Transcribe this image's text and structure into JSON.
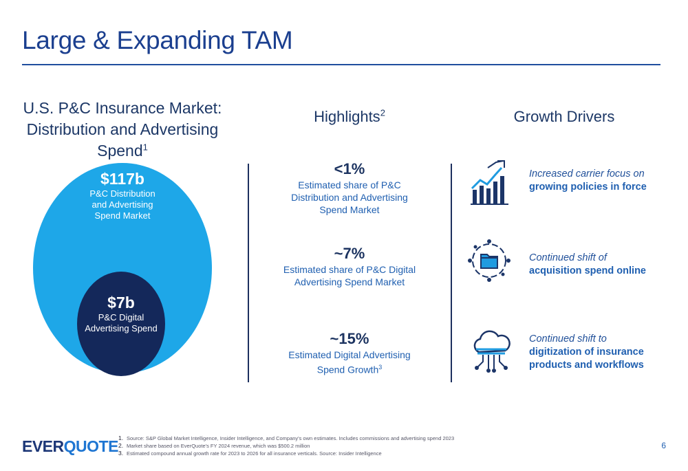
{
  "slide": {
    "title": "Large & Expanding TAM",
    "page_number": "6"
  },
  "left_column": {
    "heading_line1": "U.S. P&C Insurance Market:",
    "heading_line2": "Distribution and Advertising",
    "heading_line3": "Spend",
    "heading_sup": "1",
    "outer": {
      "amount": "$117b",
      "label1": "P&C Distribution",
      "label2": "and Advertising",
      "label3": "Spend Market"
    },
    "inner": {
      "amount": "$7b",
      "label1": "P&C Digital",
      "label2": "Advertising Spend"
    }
  },
  "highlights": {
    "heading": "Highlights",
    "heading_sup": "2",
    "items": [
      {
        "value": "<1%",
        "line1": "Estimated share of P&C",
        "line2": "Distribution and Advertising",
        "line3": "Spend Market"
      },
      {
        "value": "~7%",
        "line1": "Estimated share of P&C Digital",
        "line2": "Advertising Spend Market"
      },
      {
        "value": "~15%",
        "line1": "Estimated Digital Advertising",
        "line2": "Spend Growth",
        "sup": "3"
      }
    ]
  },
  "drivers": {
    "heading": "Growth Drivers",
    "items": [
      {
        "icon": "growth-chart-icon",
        "lead": "Increased carrier focus on",
        "bold1": "growing policies in force"
      },
      {
        "icon": "folder-cycle-icon",
        "lead": "Continued shift of",
        "bold1": "acquisition spend online"
      },
      {
        "icon": "cloud-network-icon",
        "lead": "Continued shift to",
        "bold1": "digitization of insurance",
        "bold2": "products and workflows"
      }
    ]
  },
  "footer": {
    "logo_part1": "EVER",
    "logo_part2": "QUOTE",
    "notes": [
      {
        "n": "1.",
        "text": "Source: S&P Global Market Intelligence, Insider Intelligence, and Company's own estimates. Includes commissions and advertising spend 2023"
      },
      {
        "n": "2.",
        "text": "Market share based on EverQuote's FY 2024 revenue, which was $500.2 million"
      },
      {
        "n": "3.",
        "text": "Estimated compound annual growth rate for 2023 to 2026 for all insurance verticals. Source: Insider Intelligence"
      }
    ]
  },
  "colors": {
    "outer_circle": "#1ea7e8",
    "inner_circle": "#14285a",
    "accent": "#1f5fb0",
    "rule": "#1f4e9e"
  }
}
